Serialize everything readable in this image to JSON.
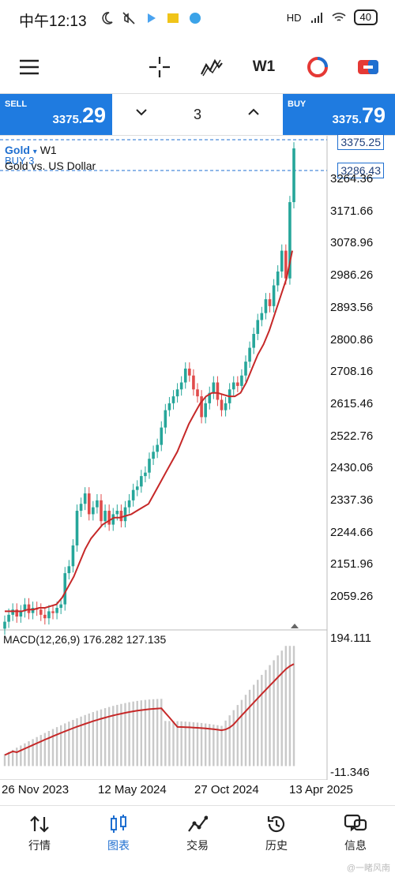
{
  "status_bar": {
    "time": "中午12:13",
    "signal": "HD",
    "battery": "40"
  },
  "toolbar": {
    "crosshair_icon": "crosshair-icon",
    "indicators_icon": "indicator-icon",
    "timeframe": "W1",
    "logo_icon": "broker-logo-icon",
    "trade_icon": "trade-icon"
  },
  "trade": {
    "sell_label": "SELL",
    "sell_price_small": "3375.",
    "sell_price_big": "29",
    "buy_label": "BUY",
    "buy_price_small": "3375.",
    "buy_price_big": "79",
    "volume": "3"
  },
  "chart": {
    "symbol": "Gold",
    "timeframe": "W1",
    "description": "Gold vs. US Dollar",
    "position": "BUY 3",
    "current_price": "3375.25",
    "position_price": "3286.43",
    "price_axis": [
      "3264.36",
      "3171.66",
      "3078.96",
      "2986.26",
      "2893.56",
      "2800.86",
      "2708.16",
      "2615.46",
      "2522.76",
      "2430.06",
      "2337.36",
      "2244.66",
      "2151.96",
      "2059.26"
    ],
    "macd_title": "MACD(12,26,9) 176.282 127.135",
    "macd_max": "194.111",
    "macd_min": "-11.346",
    "dates": [
      "26 Nov 2023",
      "12 May 2024",
      "27 Oct 2024",
      "13 Apr 2025"
    ]
  },
  "chart_data": {
    "type": "candlestick",
    "title": "Gold vs. US Dollar",
    "ylim": [
      2000,
      3400
    ],
    "x_ticks": [
      "26 Nov 2023",
      "12 May 2024",
      "27 Oct 2024",
      "13 Apr 2025"
    ],
    "close": [
      2010,
      2030,
      2045,
      2025,
      2040,
      2060,
      2035,
      2050,
      2045,
      2030,
      2020,
      2040,
      2035,
      2050,
      2060,
      2150,
      2170,
      2230,
      2330,
      2350,
      2380,
      2320,
      2340,
      2360,
      2300,
      2330,
      2290,
      2320,
      2330,
      2300,
      2340,
      2360,
      2390,
      2400,
      2430,
      2440,
      2480,
      2500,
      2520,
      2570,
      2620,
      2640,
      2660,
      2680,
      2700,
      2740,
      2720,
      2680,
      2660,
      2600,
      2640,
      2670,
      2700,
      2650,
      2620,
      2640,
      2680,
      2700,
      2690,
      2720,
      2760,
      2800,
      2840,
      2880,
      2900,
      2940,
      2920,
      2980,
      3020,
      3080,
      3000,
      3220,
      3375
    ],
    "ma": [
      2040,
      2040,
      2040,
      2040,
      2045,
      2045,
      2050,
      2050,
      2055,
      2060,
      2080,
      2110,
      2140,
      2180,
      2220,
      2250,
      2270,
      2290,
      2300,
      2310,
      2310,
      2315,
      2320,
      2330,
      2340,
      2350,
      2380,
      2410,
      2440,
      2470,
      2500,
      2540,
      2580,
      2610,
      2640,
      2660,
      2670,
      2670,
      2665,
      2660,
      2660,
      2670,
      2700,
      2740,
      2780,
      2810,
      2850,
      2900,
      2950,
      3000,
      3080
    ],
    "macd_hist_range": [
      -11.346,
      194.111
    ],
    "macd_main": 176.282,
    "macd_signal": 127.135
  }
}
